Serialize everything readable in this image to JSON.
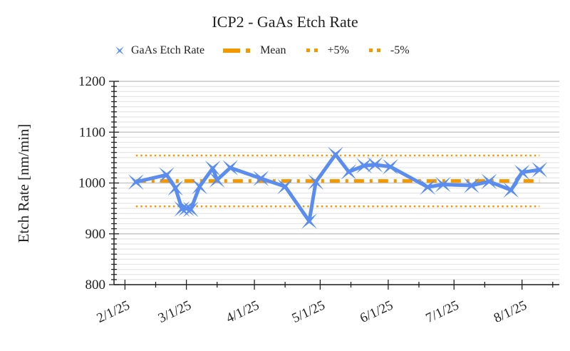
{
  "chart_data": {
    "type": "line",
    "title": "ICP2 - GaAs Etch Rate",
    "xlabel": "",
    "ylabel": "Etch Rate [nm/min]",
    "ylim": [
      800,
      1200
    ],
    "xlim": [
      "2025-01-27",
      "2025-08-18"
    ],
    "y_ticks": [
      "800",
      "900",
      "1000",
      "1100",
      "1200"
    ],
    "x_ticks": [
      {
        "date": "2025-02-01",
        "label": "2/1/25"
      },
      {
        "date": "2025-03-01",
        "label": "3/1/25"
      },
      {
        "date": "2025-04-01",
        "label": "4/1/25"
      },
      {
        "date": "2025-05-01",
        "label": "5/1/25"
      },
      {
        "date": "2025-06-01",
        "label": "6/1/25"
      },
      {
        "date": "2025-07-01",
        "label": "7/1/25"
      },
      {
        "date": "2025-08-01",
        "label": "8/1/25"
      }
    ],
    "grid": true,
    "legend_position": "top",
    "series": [
      {
        "name": "GaAs Etch Rate",
        "color": "#5b8def",
        "marker": "star-x",
        "points": [
          [
            "2025-02-06",
            1002
          ],
          [
            "2025-02-20",
            1016
          ],
          [
            "2025-02-24",
            990
          ],
          [
            "2025-02-27",
            949
          ],
          [
            "2025-03-01",
            950
          ],
          [
            "2025-03-03",
            948
          ],
          [
            "2025-03-07",
            993
          ],
          [
            "2025-03-13",
            1029
          ],
          [
            "2025-03-15",
            1006
          ],
          [
            "2025-03-21",
            1030
          ],
          [
            "2025-04-04",
            1009
          ],
          [
            "2025-04-15",
            993
          ],
          [
            "2025-04-26",
            925
          ],
          [
            "2025-04-29",
            1002
          ],
          [
            "2025-05-08",
            1056
          ],
          [
            "2025-05-14",
            1022
          ],
          [
            "2025-05-21",
            1034
          ],
          [
            "2025-05-26",
            1036
          ],
          [
            "2025-06-02",
            1032
          ],
          [
            "2025-06-19",
            992
          ],
          [
            "2025-06-26",
            997
          ],
          [
            "2025-07-09",
            995
          ],
          [
            "2025-07-17",
            1003
          ],
          [
            "2025-07-27",
            986
          ],
          [
            "2025-08-01",
            1021
          ],
          [
            "2025-08-09",
            1026
          ]
        ]
      },
      {
        "name": "Mean",
        "color": "#f29900",
        "style": "dash-dot",
        "value": 1004
      },
      {
        "name": "+5%",
        "color": "#f29900",
        "style": "dotted",
        "value": 1054
      },
      {
        "name": "-5%",
        "color": "#f29900",
        "style": "dotted",
        "value": 954
      }
    ]
  }
}
